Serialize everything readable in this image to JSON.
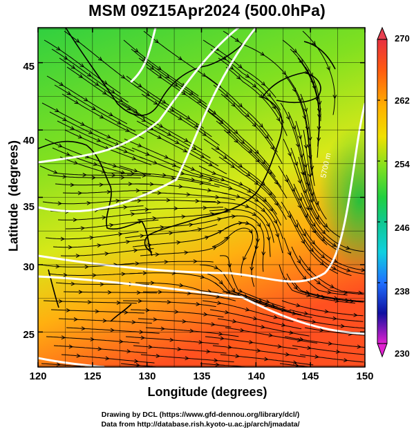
{
  "map": {
    "title": "MSM 09Z15Apr2024 (500.0hPa)",
    "xlabel": "Longitude (degrees)",
    "ylabel": "Latitude  (degrees)",
    "x_ticks": [
      "120",
      "125",
      "130",
      "135",
      "140",
      "145",
      "150"
    ],
    "y_ticks": [
      "25",
      "30",
      "35",
      "40",
      "45"
    ],
    "lon_range": [
      120,
      150
    ],
    "lat_range": [
      22.4,
      47.6
    ],
    "contour_label": "5700 m",
    "colorbar": {
      "ticks": [
        "270",
        "262",
        "254",
        "246",
        "238",
        "230"
      ],
      "range": [
        230,
        270
      ],
      "colors": [
        "#e03060",
        "#ff4020",
        "#ff9000",
        "#ffd000",
        "#c8f000",
        "#40d020",
        "#10c070",
        "#10d0d0",
        "#2080ff",
        "#1020b0",
        "#c020d0"
      ]
    },
    "footer_line1": "Drawing by DCL (https://www.gfd-dennou.org/library/dcl/)",
    "footer_line2": "Data from http://database.rish.kyoto-u.ac.jp/arch/jmadata/"
  }
}
